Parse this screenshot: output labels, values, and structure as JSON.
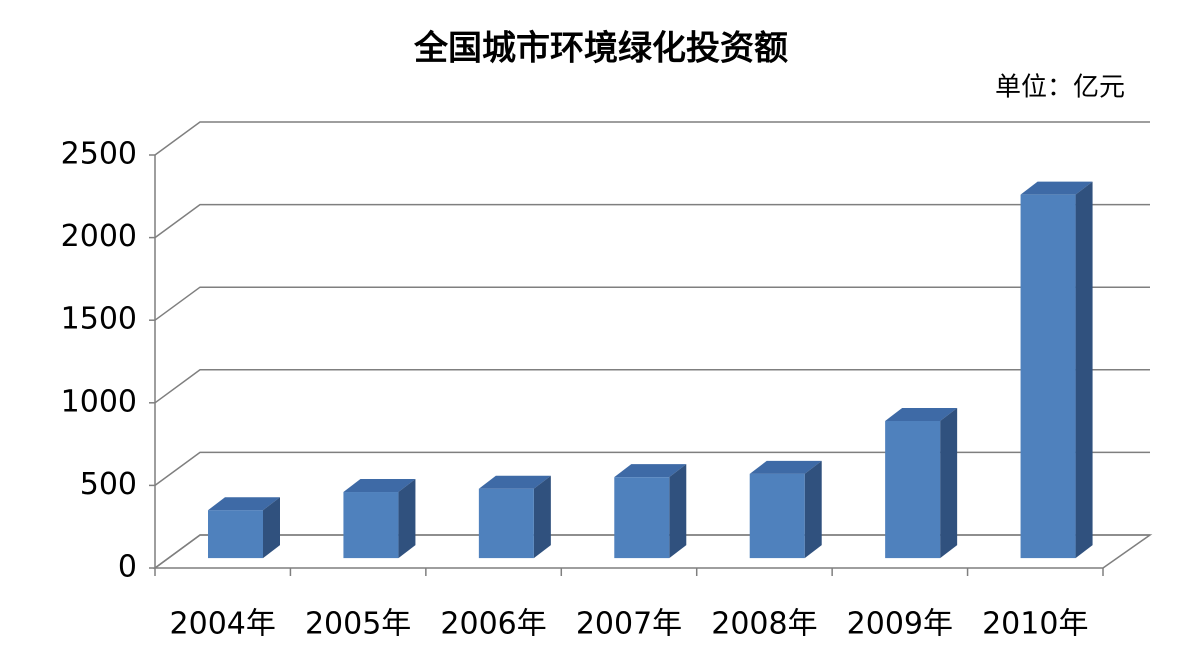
{
  "chart_data": {
    "type": "bar3d",
    "title": "全国城市环境绿化投资额",
    "unit_label": "单位：亿元",
    "categories": [
      "2004年",
      "2005年",
      "2006年",
      "2007年",
      "2008年",
      "2009年",
      "2010年"
    ],
    "values": [
      290,
      400,
      420,
      490,
      510,
      830,
      2200
    ],
    "color": "#4f81bd",
    "ylim": [
      0,
      2500
    ],
    "yticks": [
      0,
      500,
      1000,
      1500,
      2000,
      2500
    ],
    "grid": true
  }
}
